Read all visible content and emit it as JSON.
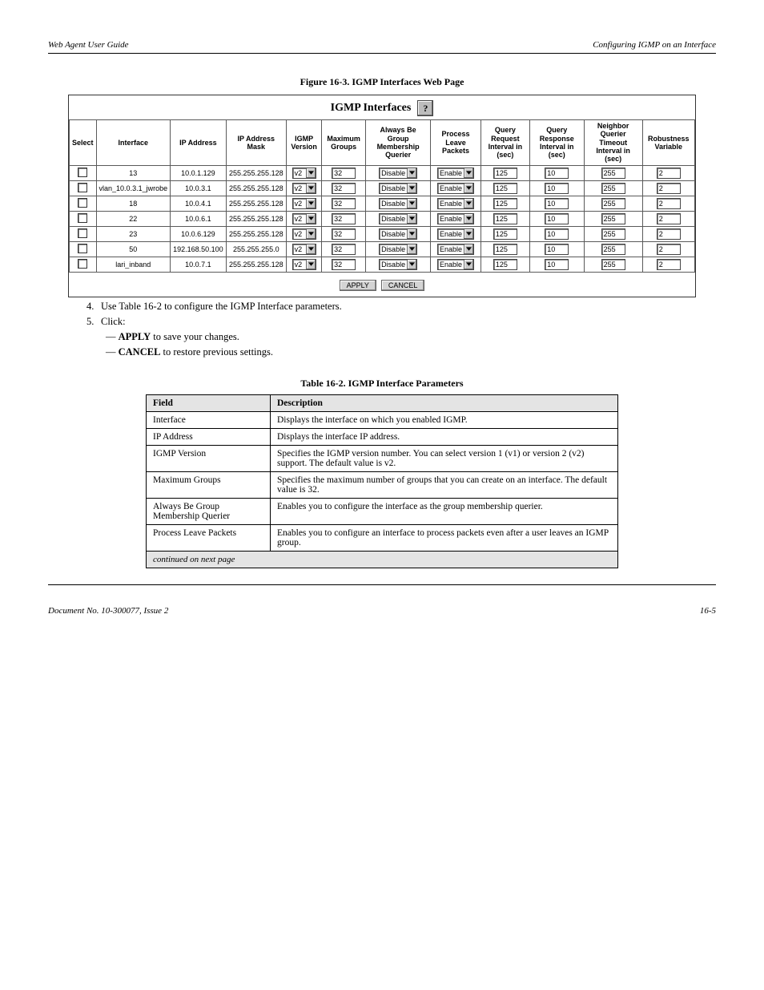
{
  "header": {
    "left": "Web Agent User Guide",
    "right": "Configuring IGMP on an Interface"
  },
  "figure_caption": "Figure 16-3. IGMP Interfaces Web Page",
  "igmp_table": {
    "title": "IGMP Interfaces",
    "columns": [
      "Select",
      "Interface",
      "IP Address",
      "IP Address Mask",
      "IGMP Version",
      "Maximum Groups",
      "Always Be Group Membership Querier",
      "Process Leave Packets",
      "Query Request Interval in (sec)",
      "Query Response Interval in (sec)",
      "Neighbor Querier Timeout Interval in (sec)",
      "Robustness Variable"
    ],
    "rows": [
      {
        "iface": "13",
        "ip": "10.0.1.129",
        "mask": "255.255.255.128",
        "ver": "v2",
        "max": "32",
        "querier": "Disable",
        "leave": "Enable",
        "qreq": "125",
        "qresp": "10",
        "nq": "255",
        "rob": "2"
      },
      {
        "iface": "vlan_10.0.3.1_jwrobe",
        "ip": "10.0.3.1",
        "mask": "255.255.255.128",
        "ver": "v2",
        "max": "32",
        "querier": "Disable",
        "leave": "Enable",
        "qreq": "125",
        "qresp": "10",
        "nq": "255",
        "rob": "2"
      },
      {
        "iface": "18",
        "ip": "10.0.4.1",
        "mask": "255.255.255.128",
        "ver": "v2",
        "max": "32",
        "querier": "Disable",
        "leave": "Enable",
        "qreq": "125",
        "qresp": "10",
        "nq": "255",
        "rob": "2"
      },
      {
        "iface": "22",
        "ip": "10.0.6.1",
        "mask": "255.255.255.128",
        "ver": "v2",
        "max": "32",
        "querier": "Disable",
        "leave": "Enable",
        "qreq": "125",
        "qresp": "10",
        "nq": "255",
        "rob": "2"
      },
      {
        "iface": "23",
        "ip": "10.0.6.129",
        "mask": "255.255.255.128",
        "ver": "v2",
        "max": "32",
        "querier": "Disable",
        "leave": "Enable",
        "qreq": "125",
        "qresp": "10",
        "nq": "255",
        "rob": "2"
      },
      {
        "iface": "50",
        "ip": "192.168.50.100",
        "mask": "255.255.255.0",
        "ver": "v2",
        "max": "32",
        "querier": "Disable",
        "leave": "Enable",
        "qreq": "125",
        "qresp": "10",
        "nq": "255",
        "rob": "2"
      },
      {
        "iface": "lari_inband",
        "ip": "10.0.7.1",
        "mask": "255.255.255.128",
        "ver": "v2",
        "max": "32",
        "querier": "Disable",
        "leave": "Enable",
        "qreq": "125",
        "qresp": "10",
        "nq": "255",
        "rob": "2"
      }
    ],
    "buttons": {
      "apply": "APPLY",
      "cancel": "CANCEL"
    }
  },
  "steps": {
    "intro_4": "Use Table 16-2 to configure the IGMP Interface parameters.",
    "intro_5": "Click:",
    "bullet_a": "APPLY to save your changes.",
    "bullet_b": "CANCEL to restore previous settings."
  },
  "desc_table": {
    "title": "Table 16-2. IGMP Interface Parameters",
    "head": {
      "field": "Field",
      "desc": "Description"
    },
    "rows": [
      {
        "field": "Interface",
        "desc": "Displays the interface on which you enabled IGMP."
      },
      {
        "field": "IP Address",
        "desc": "Displays the interface IP address."
      },
      {
        "field": "IGMP Version",
        "desc": "Specifies the IGMP version number. You can select version 1 (v1) or version 2 (v2) support. The default value is v2."
      },
      {
        "field": "Maximum Groups",
        "desc": "Specifies the maximum number of groups that you can create on an interface. The default value is 32."
      },
      {
        "field": "Always Be Group Membership Querier",
        "desc": "Enables you to configure the interface as the group membership querier."
      },
      {
        "field": "Process Leave Packets",
        "desc": "Enables you to configure an interface to process packets even after a user leaves an IGMP group."
      }
    ],
    "continued": "continued on next page"
  },
  "footer": {
    "ver": "Document No. 10-300077, Issue 2",
    "pg": "16-5"
  }
}
